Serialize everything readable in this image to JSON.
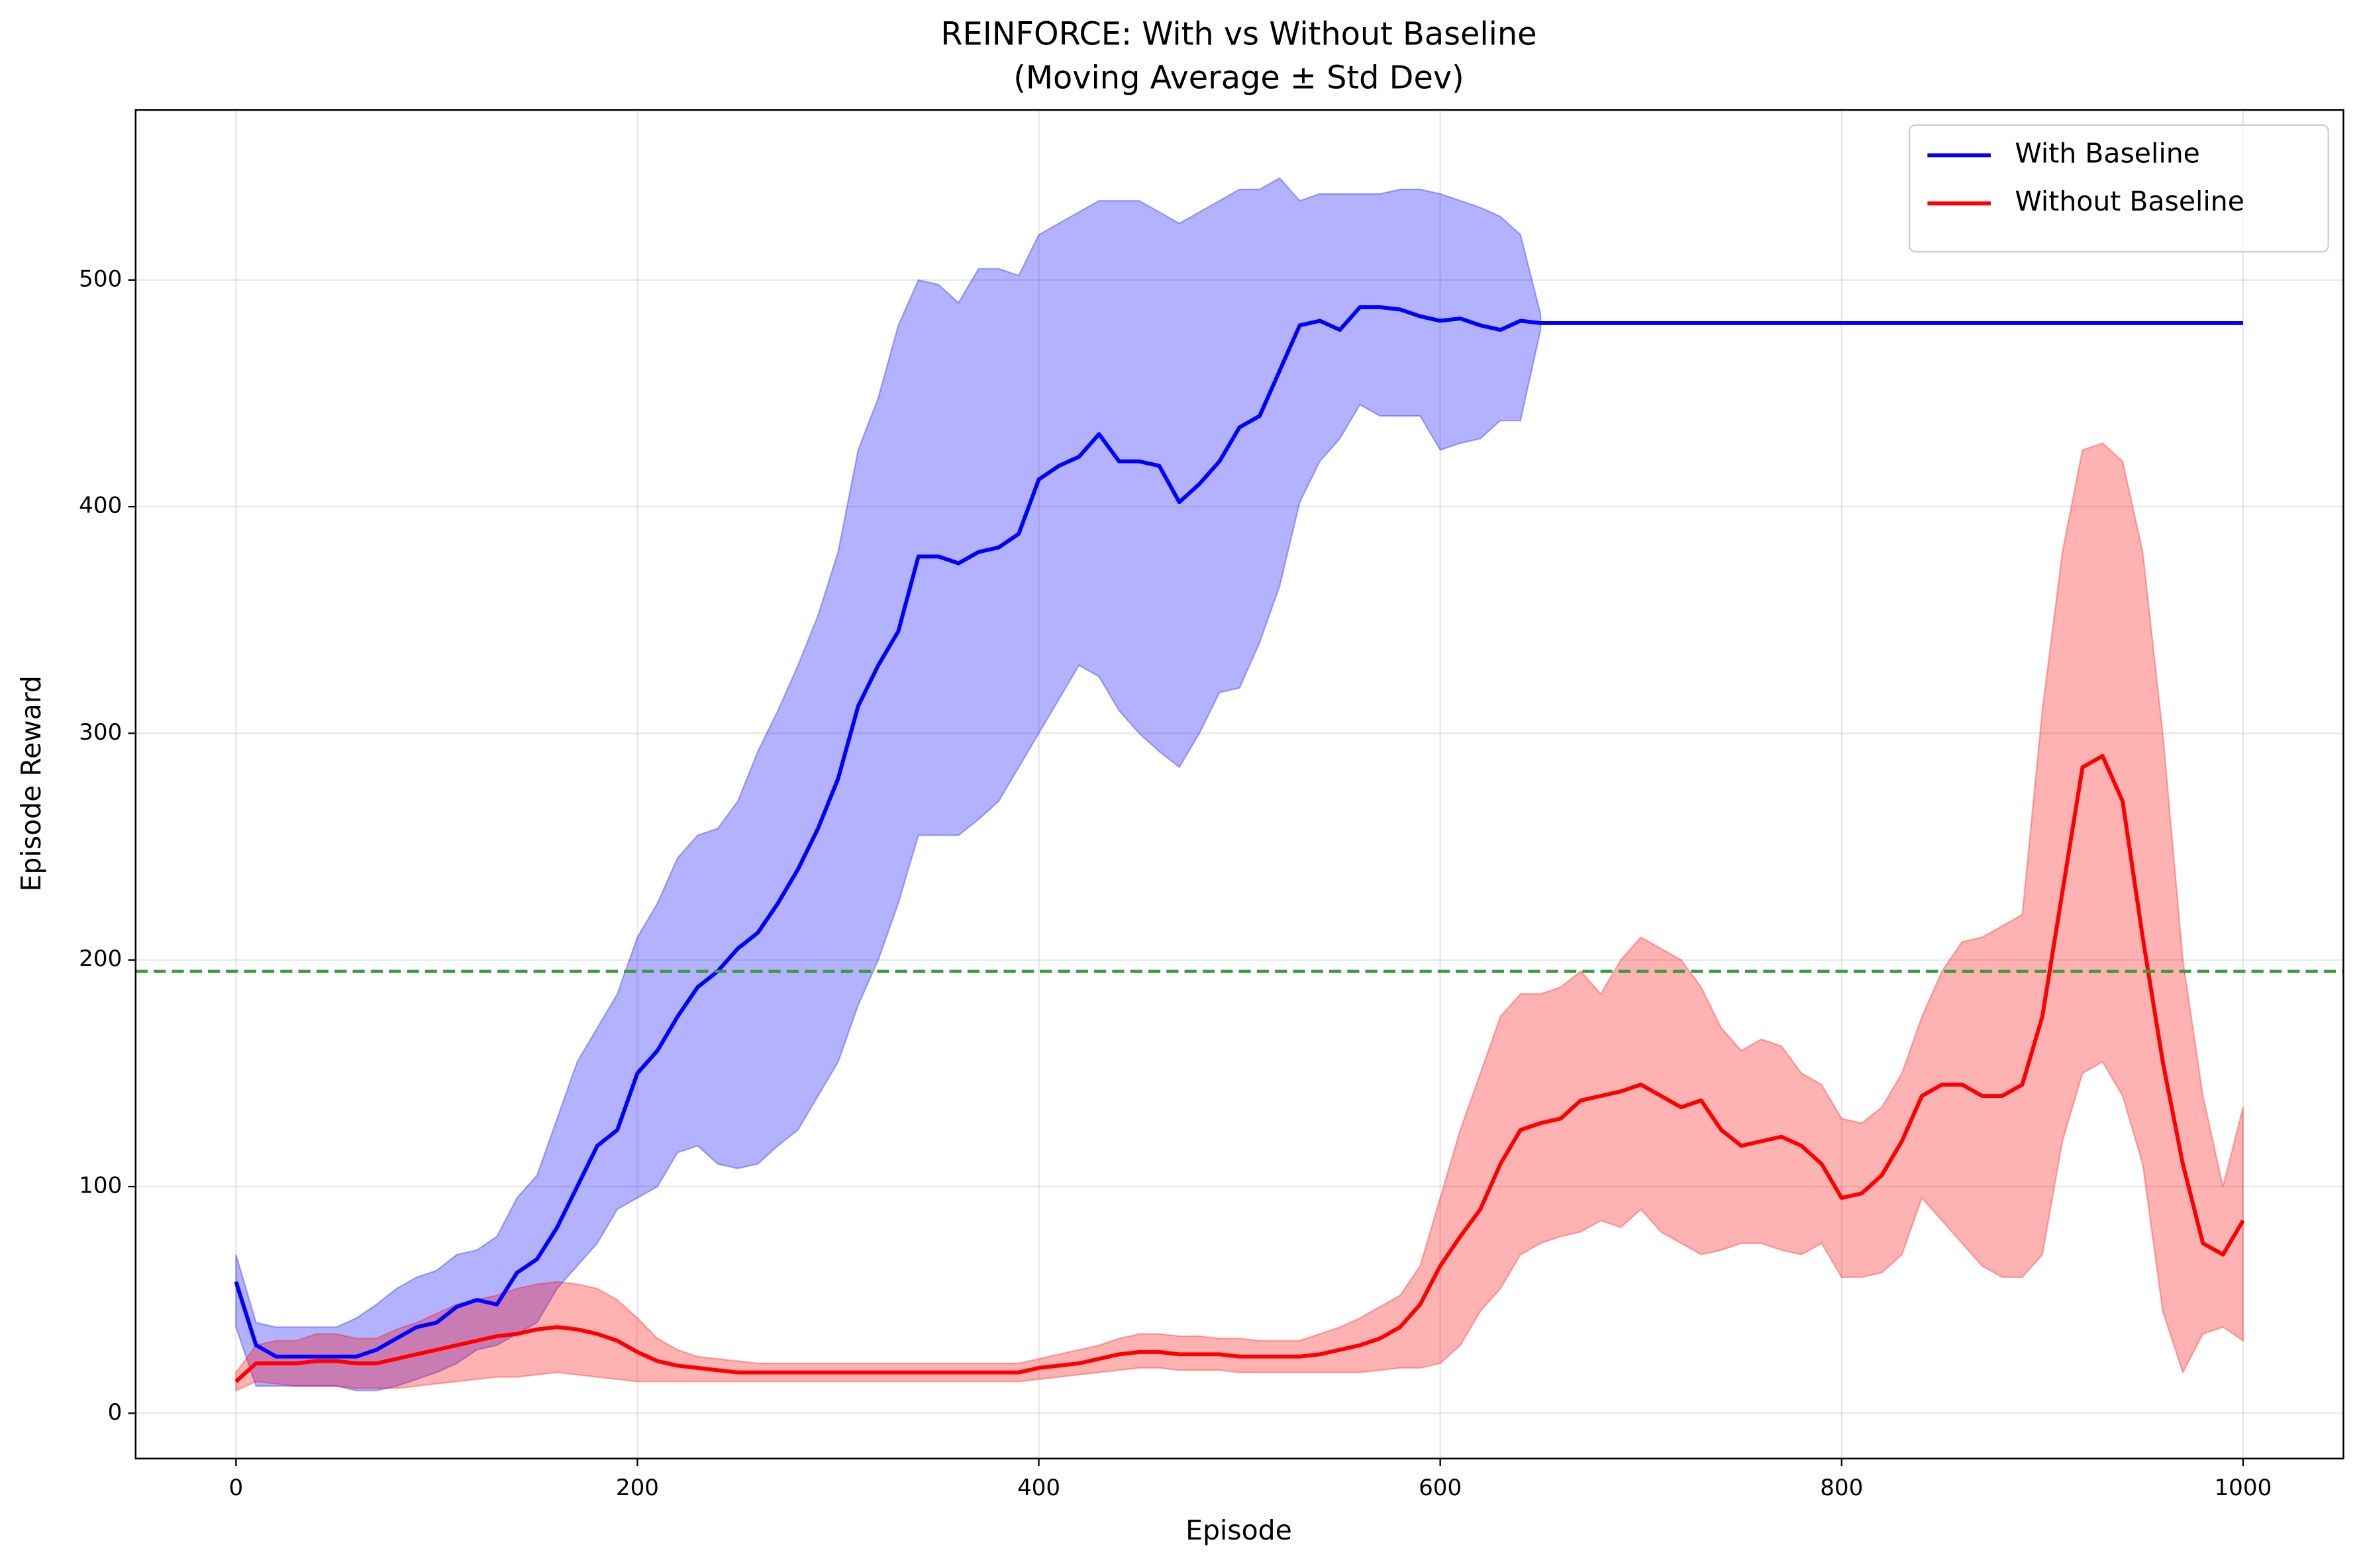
{
  "chart_data": {
    "type": "line",
    "title": "REINFORCE: With vs Without Baseline",
    "subtitle": "(Moving Average ± Std Dev)",
    "x_label": "Episode",
    "y_label": "Episode Reward",
    "xlim": [
      -50,
      1050
    ],
    "ylim": [
      -20,
      575
    ],
    "xticks": [
      0,
      200,
      400,
      600,
      800,
      1000
    ],
    "yticks": [
      0,
      100,
      200,
      300,
      400,
      500
    ],
    "grid": true,
    "legend": "upper right",
    "reference_line": {
      "value": 195,
      "color": "#3d9b3d"
    },
    "x": [
      0,
      10,
      20,
      30,
      40,
      50,
      60,
      70,
      80,
      90,
      100,
      110,
      120,
      130,
      140,
      150,
      160,
      170,
      180,
      190,
      200,
      210,
      220,
      230,
      240,
      250,
      260,
      270,
      280,
      290,
      300,
      310,
      320,
      330,
      340,
      350,
      360,
      370,
      380,
      390,
      400,
      410,
      420,
      430,
      440,
      450,
      460,
      470,
      480,
      490,
      500,
      510,
      520,
      530,
      540,
      550,
      560,
      570,
      580,
      590,
      600,
      610,
      620,
      630,
      640,
      650,
      660,
      670,
      680,
      690,
      700,
      710,
      720,
      730,
      740,
      750,
      760,
      770,
      780,
      790,
      800,
      810,
      820,
      830,
      840,
      850,
      860,
      870,
      880,
      890,
      900,
      910,
      920,
      930,
      940,
      950,
      960,
      970,
      980,
      990,
      1000
    ],
    "series": [
      {
        "name": "With Baseline",
        "color": "#0000ff",
        "values": [
          58,
          30,
          25,
          25,
          25,
          25,
          25,
          28,
          33,
          38,
          40,
          47,
          50,
          48,
          62,
          68,
          82,
          100,
          118,
          125,
          150,
          160,
          175,
          188,
          195,
          205,
          212,
          225,
          240,
          258,
          280,
          312,
          330,
          345,
          378,
          378,
          375,
          380,
          382,
          388,
          412,
          418,
          422,
          432,
          420,
          420,
          418,
          402,
          410,
          420,
          435,
          440,
          460,
          480,
          482,
          478,
          488,
          488,
          487,
          484,
          482,
          483,
          480,
          478,
          482,
          481,
          481,
          481,
          481,
          481,
          481,
          481,
          481,
          481,
          481,
          481,
          481,
          481,
          481,
          481,
          481,
          481,
          481,
          481,
          481,
          481,
          481,
          481,
          481,
          481,
          481,
          481,
          481,
          481,
          481,
          481,
          481,
          481,
          481,
          481,
          481
        ],
        "upper": [
          70,
          40,
          38,
          38,
          38,
          38,
          42,
          48,
          55,
          60,
          63,
          70,
          72,
          78,
          95,
          105,
          130,
          155,
          170,
          185,
          210,
          225,
          245,
          255,
          258,
          270,
          292,
          310,
          330,
          352,
          380,
          425,
          448,
          480,
          500,
          498,
          490,
          505,
          505,
          502,
          520,
          525,
          530,
          535,
          535,
          535,
          530,
          525,
          530,
          535,
          540,
          540,
          545,
          535,
          538,
          538,
          538,
          538,
          540,
          540,
          538,
          535,
          532,
          528,
          520,
          485,
          null,
          null,
          null,
          null,
          null,
          null,
          null,
          null,
          null,
          null,
          null,
          null,
          null,
          null,
          null,
          null,
          null,
          null,
          null,
          null,
          null,
          null,
          null,
          null,
          null,
          null,
          null,
          null,
          null,
          null,
          null,
          null,
          null,
          null,
          null
        ],
        "lower": [
          38,
          12,
          12,
          12,
          12,
          12,
          10,
          10,
          12,
          15,
          18,
          22,
          28,
          30,
          35,
          40,
          55,
          65,
          75,
          90,
          95,
          100,
          115,
          118,
          110,
          108,
          110,
          118,
          125,
          140,
          155,
          180,
          200,
          225,
          255,
          255,
          255,
          262,
          270,
          285,
          300,
          315,
          330,
          325,
          310,
          300,
          292,
          285,
          300,
          318,
          320,
          340,
          365,
          402,
          420,
          430,
          445,
          440,
          440,
          440,
          425,
          428,
          430,
          438,
          438,
          478,
          null,
          null,
          null,
          null,
          null,
          null,
          null,
          null,
          null,
          null,
          null,
          null,
          null,
          null,
          null,
          null,
          null,
          null,
          null,
          null,
          null,
          null,
          null,
          null,
          null,
          null,
          null,
          null,
          null,
          null,
          null,
          null,
          null,
          null,
          null
        ]
      },
      {
        "name": "Without Baseline",
        "color": "#ff0000",
        "values": [
          14,
          22,
          22,
          22,
          23,
          23,
          22,
          22,
          24,
          26,
          28,
          30,
          32,
          34,
          35,
          37,
          38,
          37,
          35,
          32,
          27,
          23,
          21,
          20,
          19,
          18,
          18,
          18,
          18,
          18,
          18,
          18,
          18,
          18,
          18,
          18,
          18,
          18,
          18,
          18,
          20,
          21,
          22,
          24,
          26,
          27,
          27,
          26,
          26,
          26,
          25,
          25,
          25,
          25,
          26,
          28,
          30,
          33,
          38,
          48,
          65,
          78,
          90,
          110,
          125,
          128,
          130,
          138,
          140,
          142,
          145,
          140,
          135,
          138,
          125,
          118,
          120,
          122,
          118,
          110,
          95,
          97,
          105,
          120,
          140,
          145,
          145,
          140,
          140,
          145,
          175,
          230,
          285,
          290,
          270,
          210,
          155,
          110,
          75,
          70,
          85
        ],
        "upper": [
          18,
          30,
          32,
          32,
          35,
          35,
          33,
          33,
          37,
          40,
          44,
          48,
          50,
          52,
          55,
          57,
          58,
          57,
          55,
          50,
          42,
          33,
          28,
          25,
          24,
          23,
          22,
          22,
          22,
          22,
          22,
          22,
          22,
          22,
          22,
          22,
          22,
          22,
          22,
          22,
          24,
          26,
          28,
          30,
          33,
          35,
          35,
          34,
          34,
          33,
          33,
          32,
          32,
          32,
          35,
          38,
          42,
          47,
          52,
          65,
          95,
          125,
          150,
          175,
          185,
          185,
          188,
          195,
          185,
          200,
          210,
          205,
          200,
          188,
          170,
          160,
          165,
          162,
          150,
          145,
          130,
          128,
          135,
          150,
          175,
          195,
          208,
          210,
          215,
          220,
          310,
          380,
          425,
          428,
          420,
          380,
          300,
          200,
          140,
          100,
          135
        ],
        "lower": [
          10,
          14,
          13,
          12,
          12,
          12,
          11,
          11,
          11,
          12,
          13,
          14,
          15,
          16,
          16,
          17,
          18,
          17,
          16,
          15,
          14,
          14,
          14,
          14,
          14,
          14,
          14,
          14,
          14,
          14,
          14,
          14,
          14,
          14,
          14,
          14,
          14,
          14,
          14,
          14,
          15,
          16,
          17,
          18,
          19,
          20,
          20,
          19,
          19,
          19,
          18,
          18,
          18,
          18,
          18,
          18,
          18,
          19,
          20,
          20,
          22,
          30,
          45,
          55,
          70,
          75,
          78,
          80,
          85,
          82,
          90,
          80,
          75,
          70,
          72,
          75,
          75,
          72,
          70,
          75,
          60,
          60,
          62,
          70,
          95,
          85,
          75,
          65,
          60,
          60,
          70,
          120,
          150,
          155,
          140,
          110,
          45,
          18,
          35,
          38,
          32
        ]
      }
    ]
  }
}
